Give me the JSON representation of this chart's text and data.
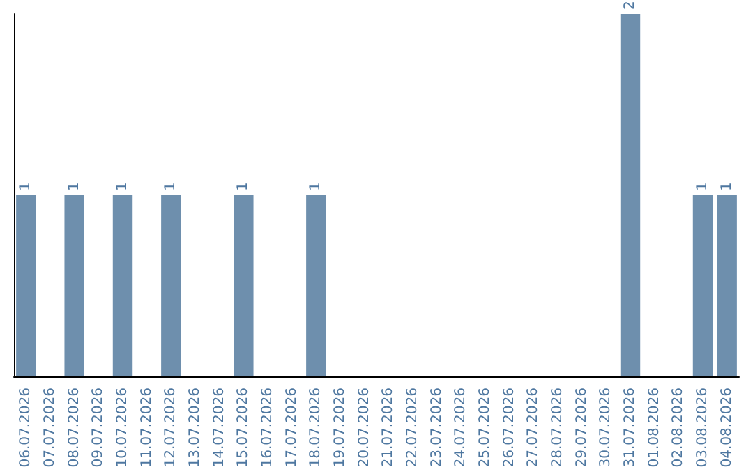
{
  "chart_data": {
    "type": "bar",
    "categories": [
      "06.07.2026",
      "07.07.2026",
      "08.07.2026",
      "09.07.2026",
      "10.07.2026",
      "11.07.2026",
      "12.07.2026",
      "13.07.2026",
      "14.07.2026",
      "15.07.2026",
      "16.07.2026",
      "17.07.2026",
      "18.07.2026",
      "19.07.2026",
      "20.07.2026",
      "21.07.2026",
      "22.07.2026",
      "23.07.2026",
      "24.07.2026",
      "25.07.2026",
      "26.07.2026",
      "27.07.2026",
      "28.07.2026",
      "29.07.2026",
      "30.07.2026",
      "31.07.2026",
      "01.08.2026",
      "02.08.2026",
      "03.08.2026",
      "04.08.2026"
    ],
    "values": [
      1,
      0,
      1,
      0,
      1,
      0,
      1,
      0,
      0,
      1,
      0,
      0,
      1,
      0,
      0,
      0,
      0,
      0,
      0,
      0,
      0,
      0,
      0,
      0,
      0,
      2,
      0,
      0,
      1,
      1
    ],
    "value_labels": [
      "1",
      null,
      "1",
      null,
      "1",
      null,
      "1",
      null,
      null,
      "1",
      null,
      null,
      "1",
      null,
      null,
      null,
      null,
      null,
      null,
      null,
      null,
      null,
      null,
      null,
      null,
      "2",
      null,
      null,
      "1",
      "1"
    ],
    "color": "#6e8fad",
    "tick_labels": "x"
  }
}
